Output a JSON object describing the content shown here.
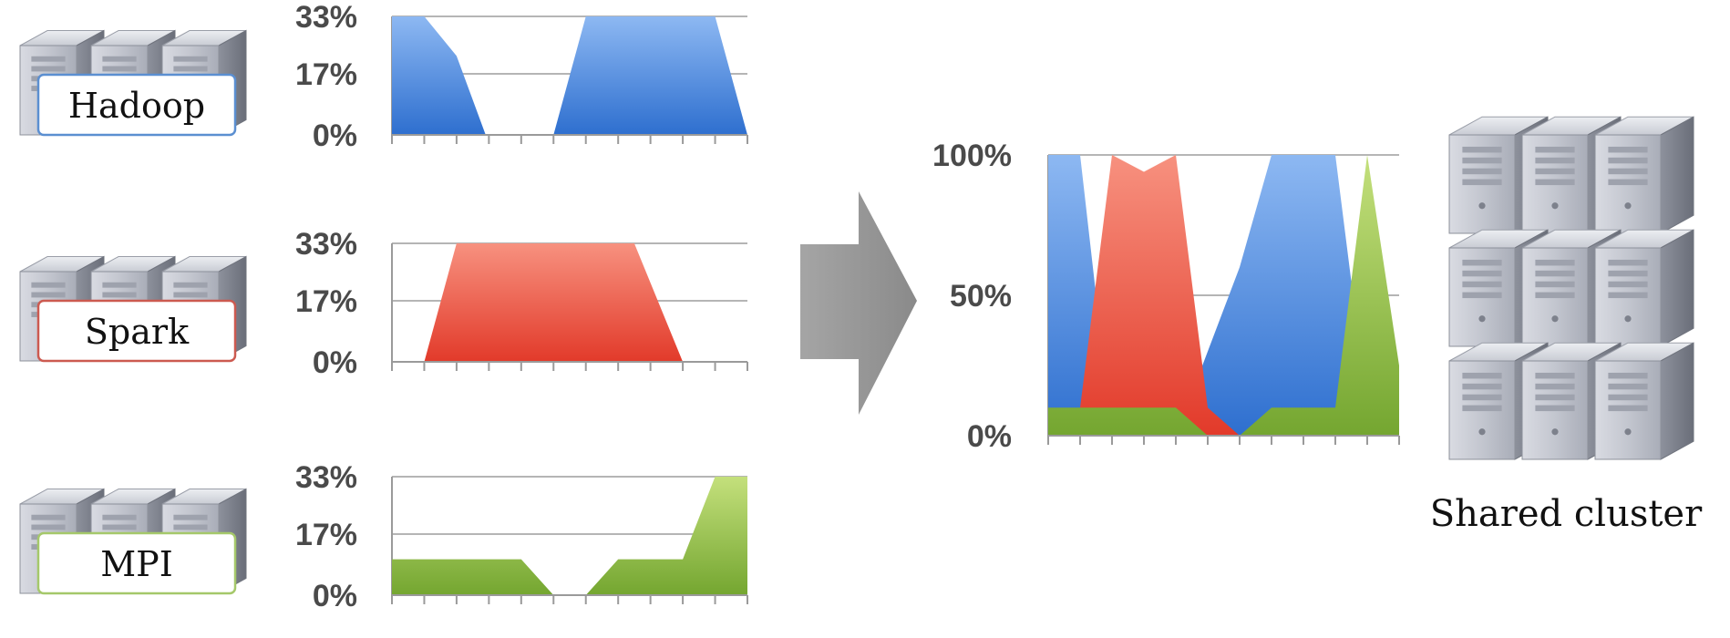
{
  "groups": [
    {
      "label": "Hadoop",
      "border": "#5b8fd1"
    },
    {
      "label": "Spark",
      "border": "#cc5a50"
    },
    {
      "label": "MPI",
      "border": "#a5c86a"
    }
  ],
  "cluster_label": "Shared cluster",
  "chart_data": [
    {
      "type": "area",
      "series": [
        {
          "name": "Hadoop",
          "color": "#3a78d4",
          "x": [
            0,
            1,
            2,
            2.9,
            5,
            6,
            10,
            11
          ],
          "y": [
            33,
            33,
            22,
            0,
            0,
            33,
            33,
            0
          ]
        }
      ],
      "yticks": [
        "33%",
        "17%",
        "0%"
      ],
      "yvalues": [
        33,
        17,
        0
      ],
      "ylim": [
        0,
        33
      ],
      "xlim": [
        0,
        11
      ],
      "x_ticks": 12,
      "grid": true
    },
    {
      "type": "area",
      "series": [
        {
          "name": "Spark",
          "color": "#e8483a",
          "x": [
            1,
            2,
            7.5,
            9
          ],
          "y": [
            0,
            33,
            33,
            0
          ]
        }
      ],
      "yticks": [
        "33%",
        "17%",
        "0%"
      ],
      "yvalues": [
        33,
        17,
        0
      ],
      "ylim": [
        0,
        33
      ],
      "xlim": [
        0,
        11
      ],
      "x_ticks": 12,
      "grid": true
    },
    {
      "type": "area",
      "series": [
        {
          "name": "MPI",
          "color": "#82b43a",
          "x": [
            0,
            4,
            5,
            6,
            7,
            9,
            10,
            11,
            11
          ],
          "y": [
            10,
            10,
            0,
            0,
            10,
            10,
            33,
            33,
            0
          ]
        }
      ],
      "yticks": [
        "33%",
        "17%",
        "0%"
      ],
      "yvalues": [
        33,
        17,
        0
      ],
      "ylim": [
        0,
        33
      ],
      "xlim": [
        0,
        11
      ],
      "x_ticks": 12,
      "grid": true
    },
    {
      "type": "area",
      "series": [
        {
          "name": "Hadoop",
          "color": "#3a78d4",
          "x": [
            0,
            1,
            2,
            4,
            6,
            7,
            9,
            10,
            10.2,
            11
          ],
          "y": [
            100,
            100,
            0,
            0,
            60,
            100,
            100,
            10,
            0,
            0
          ]
        },
        {
          "name": "Spark",
          "color": "#e8483a",
          "x": [
            1,
            2,
            3,
            4,
            5,
            6
          ],
          "y": [
            10,
            100,
            94,
            100,
            10,
            0
          ]
        },
        {
          "name": "MPI",
          "color": "#82b43a",
          "x": [
            0,
            4,
            5,
            6,
            7,
            9,
            10,
            11
          ],
          "y": [
            10,
            10,
            0,
            0,
            10,
            10,
            100,
            25
          ]
        }
      ],
      "yticks": [
        "100%",
        "50%",
        "0%"
      ],
      "yvalues": [
        100,
        50,
        0
      ],
      "ylim": [
        0,
        100
      ],
      "xlim": [
        0,
        11
      ],
      "x_ticks": 12,
      "grid": true
    }
  ]
}
